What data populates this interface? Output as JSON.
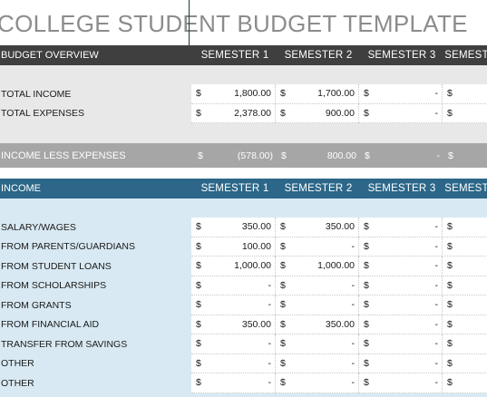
{
  "title": "COLLEGE STUDENT BUDGET TEMPLATE",
  "overview": {
    "header": "BUDGET OVERVIEW",
    "semesters": [
      "SEMESTER 1",
      "SEMESTER 2",
      "SEMESTER 3",
      "SEMEST"
    ],
    "rows": [
      {
        "label": "TOTAL INCOME",
        "values": [
          "1,800.00",
          "1,700.00",
          "-",
          ""
        ]
      },
      {
        "label": "TOTAL EXPENSES",
        "values": [
          "2,378.00",
          "900.00",
          "-",
          ""
        ]
      }
    ],
    "net": {
      "label": "INCOME LESS EXPENSES",
      "values": [
        "(578.00)",
        "800.00",
        "-",
        ""
      ]
    }
  },
  "income": {
    "header": "INCOME",
    "semesters": [
      "SEMESTER 1",
      "SEMESTER 2",
      "SEMESTER 3",
      "SEMEST"
    ],
    "rows": [
      {
        "label": "SALARY/WAGES",
        "values": [
          "350.00",
          "350.00",
          "-",
          ""
        ]
      },
      {
        "label": "FROM PARENTS/GUARDIANS",
        "values": [
          "100.00",
          "-",
          "-",
          ""
        ]
      },
      {
        "label": "FROM STUDENT LOANS",
        "values": [
          "1,000.00",
          "1,000.00",
          "-",
          ""
        ]
      },
      {
        "label": "FROM SCHOLARSHIPS",
        "values": [
          "-",
          "-",
          "-",
          ""
        ]
      },
      {
        "label": "FROM GRANTS",
        "values": [
          "-",
          "-",
          "-",
          ""
        ]
      },
      {
        "label": "FROM FINANCIAL AID",
        "values": [
          "350.00",
          "350.00",
          "-",
          ""
        ]
      },
      {
        "label": "TRANSFER FROM SAVINGS",
        "values": [
          "-",
          "-",
          "-",
          ""
        ]
      },
      {
        "label": "OTHER",
        "values": [
          "-",
          "-",
          "-",
          ""
        ]
      },
      {
        "label": "OTHER",
        "values": [
          "-",
          "-",
          "-",
          ""
        ]
      }
    ]
  },
  "currency_symbol": "$",
  "colors": {
    "overview_header": "#3f3f3f",
    "income_header": "#2c6789",
    "net_band": "#a6a6a6",
    "title": "#8c8c8c"
  }
}
